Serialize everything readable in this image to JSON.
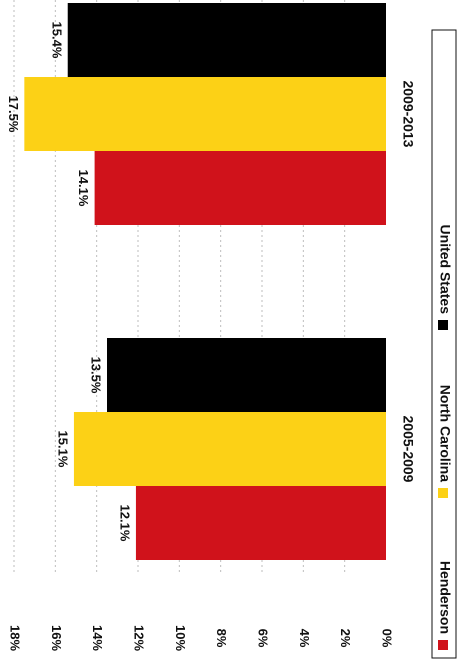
{
  "chart_data": {
    "type": "bar",
    "categories": [
      "2005-2009",
      "2009-2013"
    ],
    "series": [
      {
        "name": "Henderson",
        "values": [
          12.1,
          14.1
        ],
        "labels": [
          "12.1%",
          "14.1%"
        ],
        "color": "#d0121b"
      },
      {
        "name": "North Carolina",
        "values": [
          15.1,
          17.5
        ],
        "labels": [
          "15.1%",
          "17.5%"
        ],
        "color": "#fcd116"
      },
      {
        "name": "United States",
        "values": [
          13.5,
          15.4
        ],
        "labels": [
          "13.5%",
          "15.4%"
        ],
        "color": "#000000"
      }
    ],
    "ylim": [
      0,
      18
    ],
    "yticks": [
      0,
      2,
      4,
      6,
      8,
      10,
      12,
      14,
      16,
      18
    ],
    "ytick_labels": [
      "0%",
      "2%",
      "4%",
      "6%",
      "8%",
      "10%",
      "12%",
      "14%",
      "16%",
      "18%"
    ],
    "grid": true,
    "legend_placement": "right",
    "orientation": "rotated 90 degrees clockwise"
  }
}
